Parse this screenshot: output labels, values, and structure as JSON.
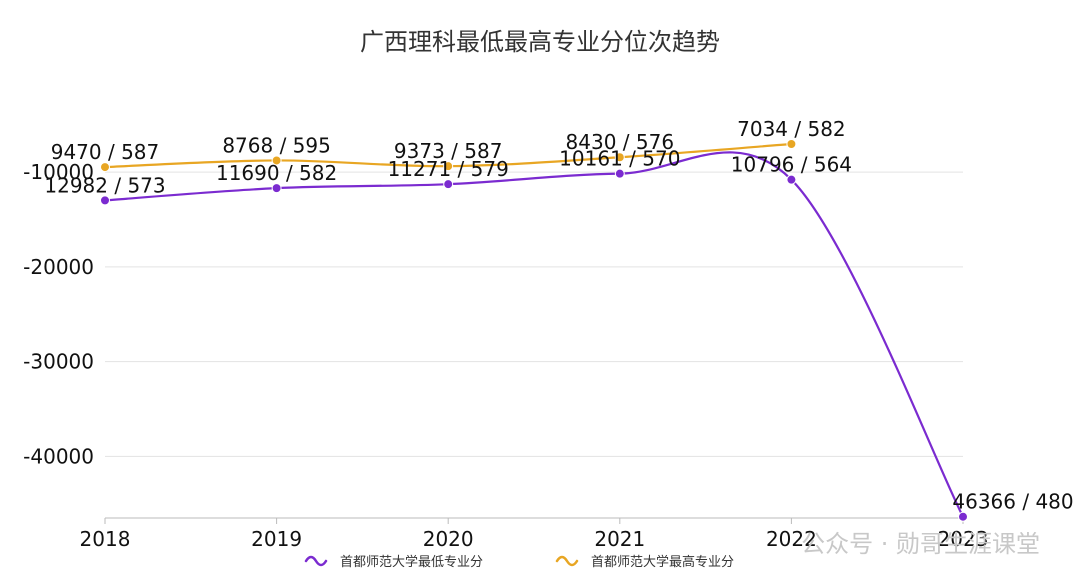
{
  "chart_data": {
    "type": "line",
    "title": "广西理科最低最高专业分位次趋势",
    "x": [
      "2018",
      "2019",
      "2020",
      "2021",
      "2022",
      "2023"
    ],
    "yticks": [
      "-10000",
      "-20000",
      "-30000",
      "-40000"
    ],
    "ylim": [
      -46500,
      -4500
    ],
    "grid": true,
    "legend": "bottom",
    "series": [
      {
        "name": "首都师范大学最低专业分",
        "color": "#7b2bd0",
        "values": [
          -12982,
          -11690,
          -11271,
          -10161,
          -10796,
          -46366
        ],
        "labels": [
          "12982 / 573",
          "11690 / 582",
          "11271 / 579",
          "10161 / 570",
          "10796 / 564",
          "46366 / 480"
        ]
      },
      {
        "name": "首都师范大学最高专业分",
        "color": "#e8a623",
        "values": [
          -9470,
          -8768,
          -9373,
          -8430,
          -7034,
          null
        ],
        "labels": [
          "9470 / 587",
          "8768 / 595",
          "9373 / 587",
          "8430 / 576",
          "7034 / 582",
          null
        ]
      }
    ]
  },
  "watermark": "公众号 · 勋哥生涯课堂"
}
